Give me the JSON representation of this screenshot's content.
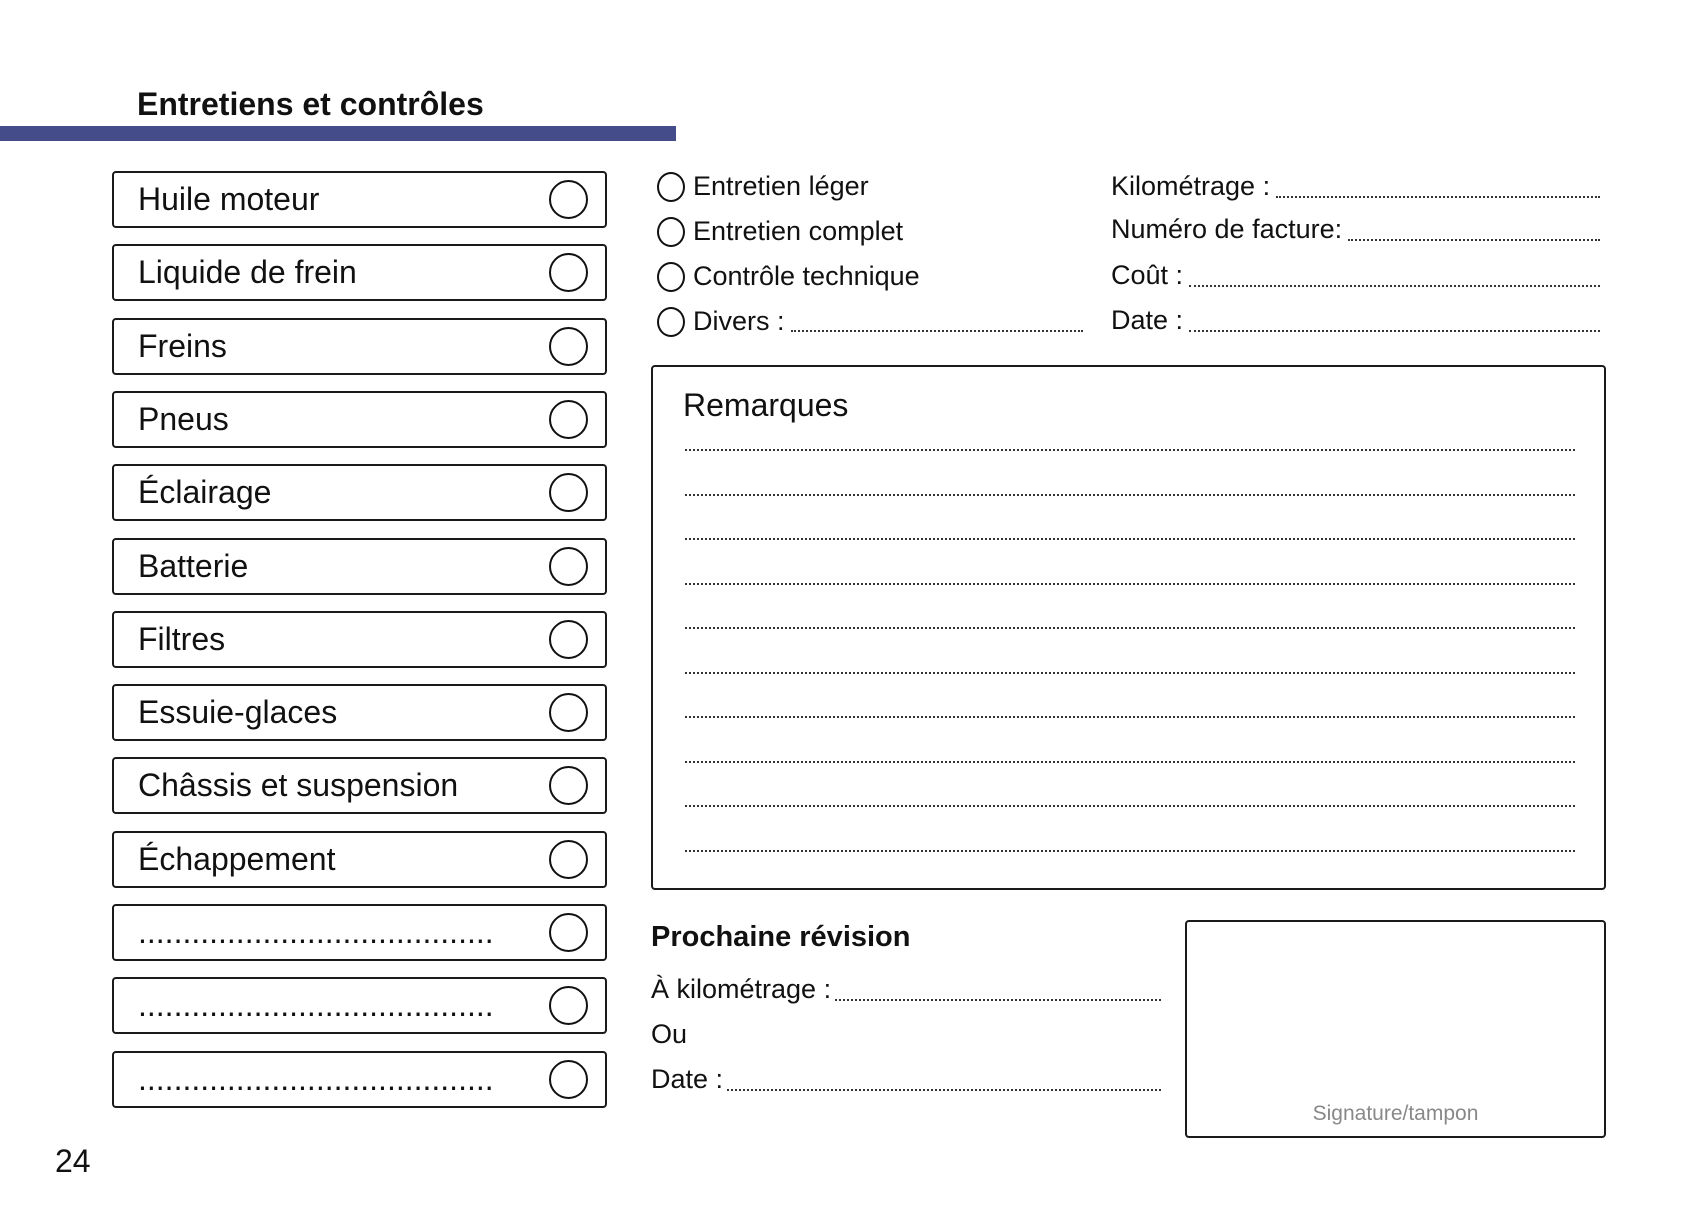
{
  "header": {
    "title": "Entretiens et contrôles",
    "accent_color": "#454c8a"
  },
  "checklist": [
    {
      "label": "Huile moteur"
    },
    {
      "label": "Liquide de frein"
    },
    {
      "label": "Freins"
    },
    {
      "label": "Pneus"
    },
    {
      "label": "Éclairage"
    },
    {
      "label": "Batterie"
    },
    {
      "label": "Filtres"
    },
    {
      "label": "Essuie-glaces"
    },
    {
      "label": "Châssis et suspension"
    },
    {
      "label": "Échappement"
    },
    {
      "label": "........................................"
    },
    {
      "label": "........................................"
    },
    {
      "label": "........................................"
    }
  ],
  "service_type": [
    {
      "label": "Entretien léger"
    },
    {
      "label": "Entretien complet"
    },
    {
      "label": "Contrôle technique"
    },
    {
      "label": "Divers :"
    }
  ],
  "fields": [
    {
      "label": "Kilométrage :"
    },
    {
      "label": "Numéro de facture:"
    },
    {
      "label": "Coût :"
    },
    {
      "label": "Date :"
    }
  ],
  "remarks": {
    "title": "Remarques"
  },
  "next_revision": {
    "title": "Prochaine révision",
    "km_label": "À kilométrage :",
    "or_label": "Ou",
    "date_label": "Date :"
  },
  "signature": {
    "label": "Signature/tampon"
  },
  "page_number": "24"
}
